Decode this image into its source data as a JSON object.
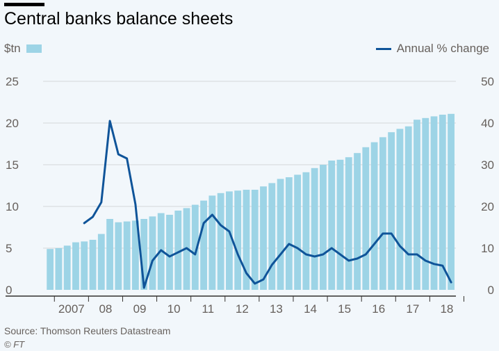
{
  "chart_data": {
    "type": "bar+line",
    "title": "Central banks balance sheets",
    "left_axis_label": "$tn",
    "right_axis_label": "Annual % change",
    "left_ylim": [
      0,
      25
    ],
    "right_ylim": [
      0,
      50
    ],
    "left_ticks": [
      "25",
      "20",
      "15",
      "10",
      "5",
      "0"
    ],
    "right_ticks": [
      "50",
      "40",
      "30",
      "20",
      "10",
      "0"
    ],
    "x_tick_labels": [
      "2007",
      "08",
      "09",
      "10",
      "11",
      "12",
      "13",
      "14",
      "15",
      "16",
      "17",
      "18"
    ],
    "bar_series": {
      "name": "$tn",
      "start_year": 2006.75,
      "period": "quarterly",
      "values": [
        4.9,
        5.0,
        5.3,
        5.7,
        5.8,
        6.0,
        6.7,
        8.5,
        8.1,
        8.2,
        8.3,
        8.5,
        8.8,
        9.2,
        9.0,
        9.5,
        9.8,
        10.2,
        10.7,
        11.3,
        11.6,
        11.8,
        11.9,
        12.0,
        12.0,
        12.4,
        12.8,
        13.3,
        13.5,
        13.8,
        14.1,
        14.6,
        15.0,
        15.5,
        15.6,
        15.9,
        16.4,
        17.1,
        17.7,
        18.3,
        18.9,
        19.3,
        19.6,
        20.4,
        20.6,
        20.8,
        21.0,
        21.1
      ]
    },
    "line_series": {
      "name": "Annual % change",
      "start_year": 2007.75,
      "period": "quarterly",
      "values": [
        16,
        17.5,
        21,
        40.5,
        32.5,
        31.5,
        20.5,
        0.5,
        7,
        9.5,
        8,
        9,
        10,
        8.5,
        16,
        18,
        15.5,
        14,
        8.5,
        4,
        1.5,
        2.5,
        6,
        8.5,
        11,
        10,
        8.5,
        8,
        8.5,
        10,
        8.5,
        7,
        7.5,
        8.5,
        11,
        13.5,
        13.5,
        10.5,
        8.5,
        8.5,
        7,
        6.2,
        5.8,
        1.8
      ]
    }
  },
  "source": "Source: Thomson Reuters Datastream",
  "credit": "© FT",
  "colors": {
    "background": "#f2f7fb",
    "bar": "#9dd4e6",
    "line": "#0f5499",
    "gridline": "#d4d7d9",
    "axis": "#33302e",
    "text": "#66605c"
  }
}
